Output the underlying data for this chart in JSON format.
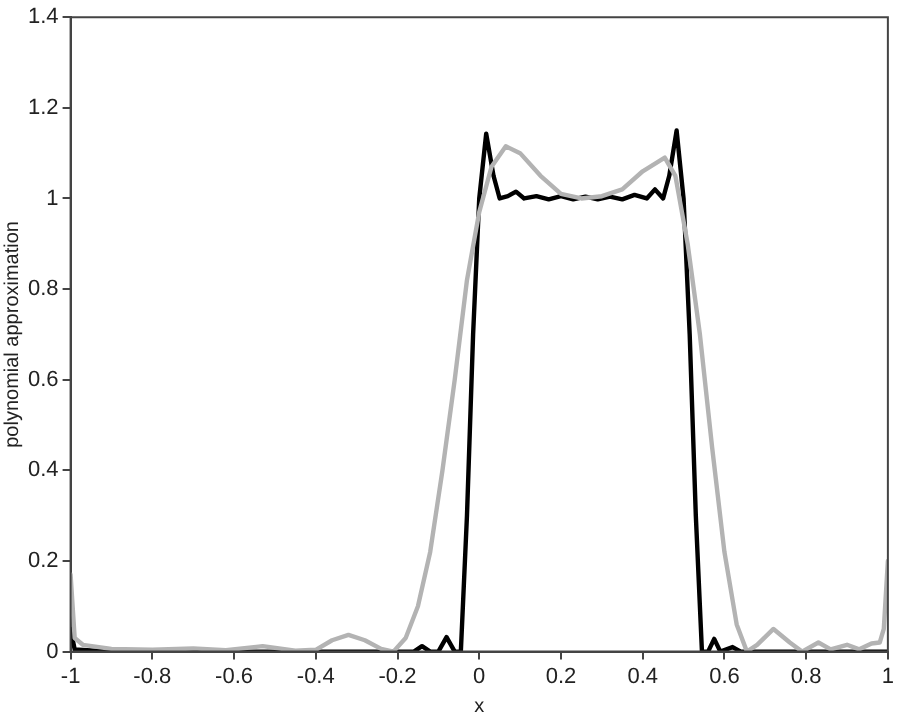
{
  "chart_data": {
    "type": "line",
    "xlabel": "x",
    "ylabel": "polynomial approximation",
    "xlim": [
      -1,
      1
    ],
    "xticks": [
      -1,
      -0.8,
      -0.6,
      -0.4,
      -0.2,
      0,
      0.2,
      0.4,
      0.6,
      0.8,
      1
    ],
    "ylim": [
      0,
      1.4
    ],
    "yticks": [
      0,
      0.2,
      0.4,
      0.6,
      0.8,
      1,
      1.2,
      1.4
    ],
    "grid": false,
    "legend": false,
    "marker": "none",
    "line_style": "solid",
    "series": [
      {
        "color": "#b3b3b3",
        "x": [
          -1,
          -0.99,
          -0.97,
          -0.9,
          -0.8,
          -0.7,
          -0.62,
          -0.53,
          -0.45,
          -0.4,
          -0.36,
          -0.32,
          -0.28,
          -0.24,
          -0.21,
          -0.18,
          -0.15,
          -0.12,
          -0.09,
          -0.06,
          -0.03,
          0,
          0.03,
          0.065,
          0.1,
          0.15,
          0.2,
          0.25,
          0.3,
          0.35,
          0.4,
          0.454,
          0.48,
          0.51,
          0.54,
          0.57,
          0.6,
          0.63,
          0.655,
          0.68,
          0.72,
          0.76,
          0.79,
          0.83,
          0.86,
          0.9,
          0.93,
          0.96,
          0.98,
          0.99,
          1
        ],
        "values": [
          0.17,
          0.03,
          0.015,
          0.006,
          0.004,
          0.007,
          0.003,
          0.012,
          0.002,
          0.004,
          0.025,
          0.037,
          0.025,
          0.006,
          0,
          0.03,
          0.1,
          0.22,
          0.4,
          0.6,
          0.82,
          0.97,
          1.07,
          1.115,
          1.1,
          1.05,
          1.01,
          1,
          1.005,
          1.02,
          1.06,
          1.09,
          1.05,
          0.9,
          0.7,
          0.45,
          0.22,
          0.06,
          0,
          0.015,
          0.05,
          0.02,
          0,
          0.02,
          0.005,
          0.015,
          0.005,
          0.018,
          0.02,
          0.05,
          0.2
        ]
      },
      {
        "color": "#000000",
        "x": [
          -1,
          -0.99,
          -0.9,
          -0.6,
          -0.3,
          -0.2,
          -0.16,
          -0.14,
          -0.12,
          -0.1,
          -0.08,
          -0.06,
          -0.045,
          -0.03,
          -0.015,
          0,
          0.017,
          0.035,
          0.05,
          0.07,
          0.09,
          0.11,
          0.14,
          0.17,
          0.2,
          0.23,
          0.26,
          0.29,
          0.32,
          0.35,
          0.38,
          0.41,
          0.43,
          0.45,
          0.465,
          0.483,
          0.5,
          0.515,
          0.53,
          0.545,
          0.56,
          0.575,
          0.59,
          0.62,
          0.64,
          0.8,
          1
        ],
        "values": [
          0.05,
          0.005,
          0,
          0,
          0,
          0,
          0,
          0.012,
          0,
          0,
          0.032,
          0,
          0,
          0.3,
          0.7,
          1,
          1.143,
          1.05,
          1,
          1.005,
          1.015,
          1,
          1.005,
          0.998,
          1.005,
          0.998,
          1.004,
          0.998,
          1.004,
          0.998,
          1.008,
          1,
          1.02,
          1,
          1.05,
          1.15,
          1,
          0.7,
          0.3,
          0,
          0,
          0.028,
          0,
          0.01,
          0,
          0,
          0
        ]
      }
    ]
  }
}
